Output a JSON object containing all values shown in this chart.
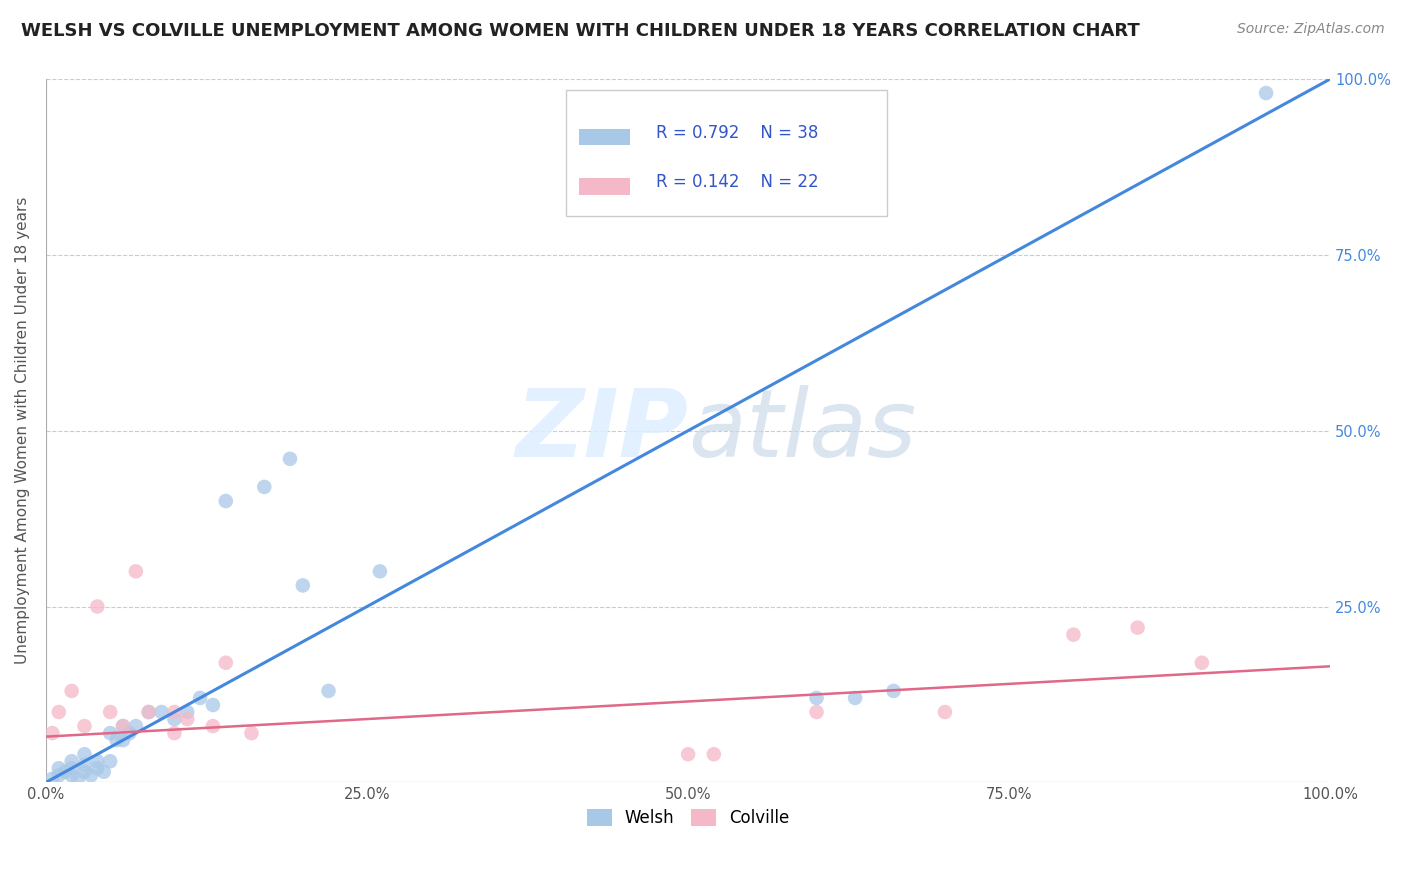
{
  "title": "WELSH VS COLVILLE UNEMPLOYMENT AMONG WOMEN WITH CHILDREN UNDER 18 YEARS CORRELATION CHART",
  "source": "Source: ZipAtlas.com",
  "ylabel": "Unemployment Among Women with Children Under 18 years",
  "xlabel": "",
  "watermark_zip": "ZIP",
  "watermark_atlas": "atlas",
  "legend_blue_r": "0.792",
  "legend_blue_n": "38",
  "legend_pink_r": "0.142",
  "legend_pink_n": "22",
  "blue_color": "#a8c8e8",
  "pink_color": "#f4b8c8",
  "blue_line_color": "#4488dd",
  "pink_line_color": "#e06888",
  "title_fontsize": 13,
  "source_fontsize": 10,
  "ylabel_fontsize": 11,
  "background_color": "#ffffff",
  "blue_scatter_x": [
    0.005,
    0.01,
    0.01,
    0.015,
    0.02,
    0.02,
    0.02,
    0.025,
    0.03,
    0.03,
    0.03,
    0.035,
    0.04,
    0.04,
    0.045,
    0.05,
    0.05,
    0.055,
    0.06,
    0.06,
    0.065,
    0.07,
    0.08,
    0.09,
    0.1,
    0.11,
    0.12,
    0.13,
    0.14,
    0.17,
    0.19,
    0.2,
    0.22,
    0.26,
    0.6,
    0.63,
    0.66,
    0.95
  ],
  "blue_scatter_y": [
    0.005,
    0.01,
    0.02,
    0.015,
    0.01,
    0.02,
    0.03,
    0.005,
    0.015,
    0.025,
    0.04,
    0.01,
    0.02,
    0.03,
    0.015,
    0.03,
    0.07,
    0.06,
    0.06,
    0.08,
    0.07,
    0.08,
    0.1,
    0.1,
    0.09,
    0.1,
    0.12,
    0.11,
    0.4,
    0.42,
    0.46,
    0.28,
    0.13,
    0.3,
    0.12,
    0.12,
    0.13,
    0.98
  ],
  "pink_scatter_x": [
    0.005,
    0.01,
    0.02,
    0.03,
    0.04,
    0.05,
    0.06,
    0.07,
    0.08,
    0.1,
    0.1,
    0.11,
    0.13,
    0.14,
    0.16,
    0.5,
    0.52,
    0.6,
    0.7,
    0.8,
    0.85,
    0.9
  ],
  "pink_scatter_y": [
    0.07,
    0.1,
    0.13,
    0.08,
    0.25,
    0.1,
    0.08,
    0.3,
    0.1,
    0.1,
    0.07,
    0.09,
    0.08,
    0.17,
    0.07,
    0.04,
    0.04,
    0.1,
    0.1,
    0.21,
    0.22,
    0.17
  ],
  "blue_line_x": [
    0.0,
    1.0
  ],
  "blue_line_y": [
    0.0,
    1.0
  ],
  "pink_line_x": [
    0.0,
    1.0
  ],
  "pink_line_y": [
    0.065,
    0.165
  ],
  "xlim": [
    0.0,
    1.0
  ],
  "ylim": [
    0.0,
    1.0
  ],
  "xticks": [
    0.0,
    0.25,
    0.5,
    0.75,
    1.0
  ],
  "yticks": [
    0.0,
    0.25,
    0.5,
    0.75,
    1.0
  ],
  "xticklabels": [
    "0.0%",
    "25.0%",
    "50.0%",
    "75.0%",
    "100.0%"
  ],
  "left_yticklabels": [
    "",
    "",
    "",
    "",
    ""
  ],
  "right_yticklabels": [
    "",
    "25.0%",
    "50.0%",
    "75.0%",
    "100.0%"
  ],
  "grid_color": "#cccccc",
  "grid_style": "--",
  "legend_text_color": "#3355cc",
  "legend_label_color": "#333333"
}
